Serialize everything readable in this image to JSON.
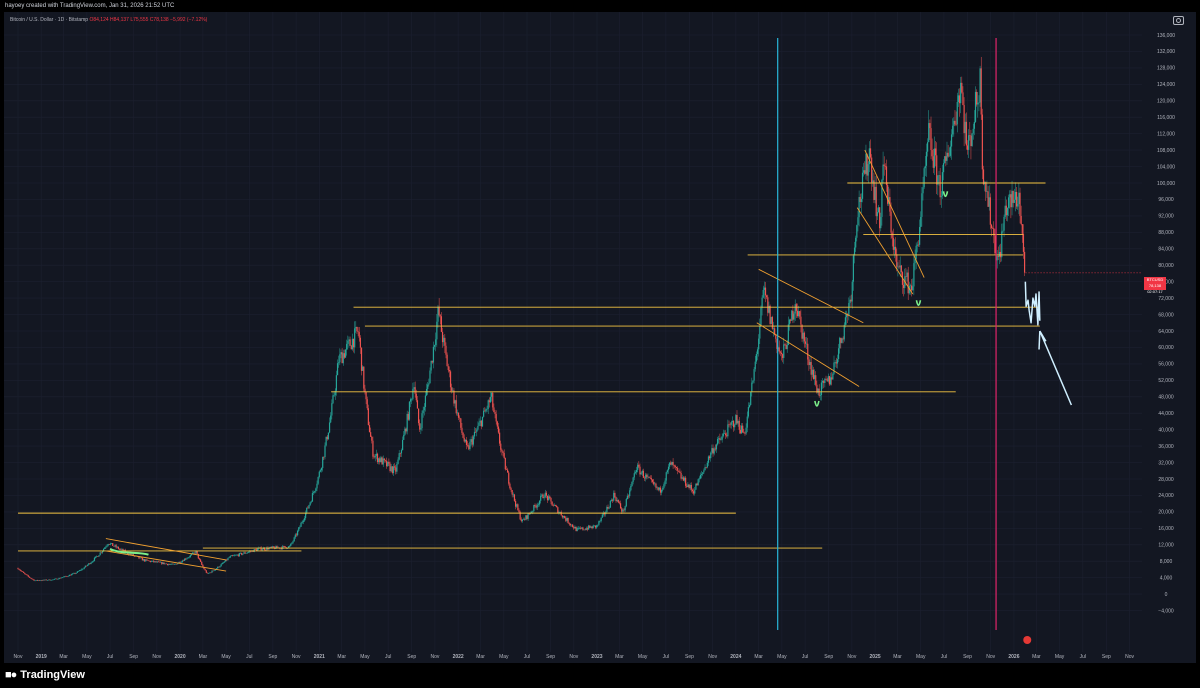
{
  "header": {
    "credit": "hayoey created with TradingView.com, Jan 31, 2026 21:52 UTC",
    "symbol": "Bitcoin / U.S. Dollar · 1D · Bitstamp",
    "ohlc": "O84,124 H84,137 L75,555 C78,138 −5,992 (−7.12%)"
  },
  "price_tag": {
    "symbol": "BTCUSD",
    "price": "78,138",
    "countdown": "02:07:17",
    "color": "#f23645"
  },
  "footer": {
    "brand": "TradingView",
    "logo_icon": "tradingview-logo-icon"
  },
  "colors": {
    "background": "#131722",
    "up": "#26a69a",
    "down": "#ef5350",
    "trendline": "#f5c542",
    "channel": "#f0a030",
    "cyan_marker": "#29b6d8",
    "magenta_marker": "#e0246a",
    "annotation_green": "#7cf08a",
    "annotation_blue": "#cfefff"
  },
  "chart_data": {
    "type": "candlestick",
    "title": "Bitcoin / U.S. Dollar · 1D · Bitstamp",
    "y_axis": {
      "range": [
        -8000,
        136000
      ],
      "ticks": [
        -4000,
        0,
        4000,
        8000,
        12000,
        16000,
        20000,
        24000,
        28000,
        32000,
        36000,
        40000,
        44000,
        48000,
        52000,
        56000,
        60000,
        64000,
        68000,
        72000,
        76000,
        80000,
        84000,
        88000,
        92000,
        96000,
        100000,
        104000,
        108000,
        112000,
        116000,
        120000,
        124000,
        128000,
        132000,
        136000
      ],
      "tick_labels": [
        "−4,000",
        "0",
        "4,000",
        "8,000",
        "12,000",
        "16,000",
        "20,000",
        "24,000",
        "28,000",
        "32,000",
        "36,000",
        "40,000",
        "44,000",
        "48,000",
        "52,000",
        "56,000",
        "60,000",
        "64,000",
        "68,000",
        "72,000",
        "76,000",
        "80,000",
        "84,000",
        "88,000",
        "92,000",
        "96,000",
        "100,000",
        "104,000",
        "108,000",
        "112,000",
        "116,000",
        "120,000",
        "124,000",
        "128,000",
        "132,000",
        "136,000"
      ]
    },
    "x_axis": {
      "range": [
        "2018-11-01",
        "2026-12-01"
      ],
      "ticks": [
        "2018-11-01",
        "2019-01-01",
        "2019-03-01",
        "2019-05-01",
        "2019-07-01",
        "2019-09-01",
        "2019-11-01",
        "2020-01-01",
        "2020-03-01",
        "2020-05-01",
        "2020-07-01",
        "2020-09-01",
        "2020-11-01",
        "2021-01-01",
        "2021-03-01",
        "2021-05-01",
        "2021-07-01",
        "2021-09-01",
        "2021-11-01",
        "2022-01-01",
        "2022-03-01",
        "2022-05-01",
        "2022-07-01",
        "2022-09-01",
        "2022-11-01",
        "2023-01-01",
        "2023-03-01",
        "2023-05-01",
        "2023-07-01",
        "2023-09-01",
        "2023-11-01",
        "2024-01-01",
        "2024-03-01",
        "2024-05-01",
        "2024-07-01",
        "2024-09-01",
        "2024-11-01",
        "2025-01-01",
        "2025-03-01",
        "2025-05-01",
        "2025-07-01",
        "2025-09-01",
        "2025-11-01",
        "2026-01-01",
        "2026-03-01",
        "2026-05-01",
        "2026-07-01",
        "2026-09-01",
        "2026-11-01"
      ],
      "tick_labels": [
        "Nov",
        "2019",
        "Mar",
        "May",
        "Jul",
        "Sep",
        "Nov",
        "2020",
        "Mar",
        "May",
        "Jul",
        "Sep",
        "Nov",
        "2021",
        "Mar",
        "May",
        "Jul",
        "Sep",
        "Nov",
        "2022",
        "Mar",
        "May",
        "Jul",
        "Sep",
        "Nov",
        "2023",
        "Mar",
        "May",
        "Jul",
        "Sep",
        "Nov",
        "2024",
        "Mar",
        "May",
        "Jul",
        "Sep",
        "Nov",
        "2025",
        "Mar",
        "May",
        "Jul",
        "Sep",
        "Nov",
        "2026",
        "Mar",
        "May",
        "Jul",
        "Sep",
        "Nov"
      ]
    },
    "price_path": [
      [
        "2018-11-01",
        6300
      ],
      [
        "2018-12-15",
        3300
      ],
      [
        "2019-02-01",
        3500
      ],
      [
        "2019-04-01",
        5100
      ],
      [
        "2019-06-26",
        12500
      ],
      [
        "2019-09-30",
        8200
      ],
      [
        "2019-12-15",
        7100
      ],
      [
        "2020-02-12",
        10300
      ],
      [
        "2020-03-13",
        4900
      ],
      [
        "2020-05-10",
        9000
      ],
      [
        "2020-07-25",
        11000
      ],
      [
        "2020-10-15",
        11500
      ],
      [
        "2020-11-20",
        18500
      ],
      [
        "2020-12-31",
        29000
      ],
      [
        "2021-02-21",
        57000
      ],
      [
        "2021-04-14",
        64000
      ],
      [
        "2021-05-23",
        34000
      ],
      [
        "2021-07-20",
        29800
      ],
      [
        "2021-09-07",
        52000
      ],
      [
        "2021-09-21",
        40000
      ],
      [
        "2021-11-10",
        69000
      ],
      [
        "2022-01-24",
        35000
      ],
      [
        "2022-03-29",
        48000
      ],
      [
        "2022-05-12",
        28500
      ],
      [
        "2022-06-18",
        17600
      ],
      [
        "2022-08-15",
        24400
      ],
      [
        "2022-09-30",
        19400
      ],
      [
        "2022-11-09",
        15600
      ],
      [
        "2022-12-31",
        16500
      ],
      [
        "2023-02-15",
        24300
      ],
      [
        "2023-03-10",
        20000
      ],
      [
        "2023-04-14",
        31000
      ],
      [
        "2023-06-15",
        25000
      ],
      [
        "2023-07-13",
        31800
      ],
      [
        "2023-09-11",
        25000
      ],
      [
        "2023-10-30",
        35000
      ],
      [
        "2023-12-31",
        42500
      ],
      [
        "2024-01-23",
        39000
      ],
      [
        "2024-03-14",
        73800
      ],
      [
        "2024-05-01",
        57000
      ],
      [
        "2024-06-05",
        71500
      ],
      [
        "2024-08-05",
        49000
      ],
      [
        "2024-09-06",
        52500
      ],
      [
        "2024-10-29",
        72500
      ],
      [
        "2024-11-13",
        92000
      ],
      [
        "2024-12-17",
        108000
      ],
      [
        "2025-01-13",
        89000
      ],
      [
        "2025-01-22",
        106000
      ],
      [
        "2025-02-28",
        79000
      ],
      [
        "2025-04-07",
        74500
      ],
      [
        "2025-05-22",
        111500
      ],
      [
        "2025-06-22",
        98500
      ],
      [
        "2025-08-14",
        124500
      ],
      [
        "2025-09-01",
        107500
      ],
      [
        "2025-10-06",
        126000
      ],
      [
        "2025-10-10",
        105000
      ],
      [
        "2025-11-21",
        80500
      ],
      [
        "2025-12-10",
        94000
      ],
      [
        "2026-01-14",
        97000
      ],
      [
        "2026-01-31",
        78138
      ]
    ],
    "horizontal_levels": [
      {
        "price": 100000,
        "from": "2024-10-20",
        "to": "2026-03-25"
      },
      {
        "price": 87500,
        "from": "2024-12-01",
        "to": "2026-01-25"
      },
      {
        "price": 82500,
        "from": "2024-02-01",
        "to": "2026-01-25"
      },
      {
        "price": 69800,
        "from": "2021-04-01",
        "to": "2026-03-10"
      },
      {
        "price": 65200,
        "from": "2021-05-01",
        "to": "2026-03-10"
      },
      {
        "price": 49200,
        "from": "2021-02-01",
        "to": "2025-08-01"
      },
      {
        "price": 19700,
        "from": "2018-11-01",
        "to": "2024-01-01"
      },
      {
        "price": 10500,
        "from": "2018-11-01",
        "to": "2020-11-15"
      },
      {
        "price": 11200,
        "from": "2020-03-01",
        "to": "2024-08-15"
      }
    ],
    "trend_lines": [
      {
        "from": [
          "2019-06-20",
          13500
        ],
        "to": [
          "2020-05-01",
          8300
        ]
      },
      {
        "from": [
          "2019-06-20",
          10500
        ],
        "to": [
          "2020-05-01",
          5600
        ]
      },
      {
        "from": [
          "2024-03-01",
          79000
        ],
        "to": [
          "2024-12-01",
          66000
        ]
      },
      {
        "from": [
          "2024-02-25",
          66000
        ],
        "to": [
          "2024-11-20",
          50500
        ]
      },
      {
        "from": [
          "2024-12-05",
          108000
        ],
        "to": [
          "2025-05-10",
          77000
        ]
      },
      {
        "from": [
          "2024-11-15",
          94000
        ],
        "to": [
          "2025-04-10",
          73000
        ]
      }
    ],
    "vertical_markers": [
      {
        "date": "2024-04-20",
        "color": "#29b6d8"
      },
      {
        "date": "2025-11-15",
        "color": "#e0246a"
      }
    ]
  }
}
